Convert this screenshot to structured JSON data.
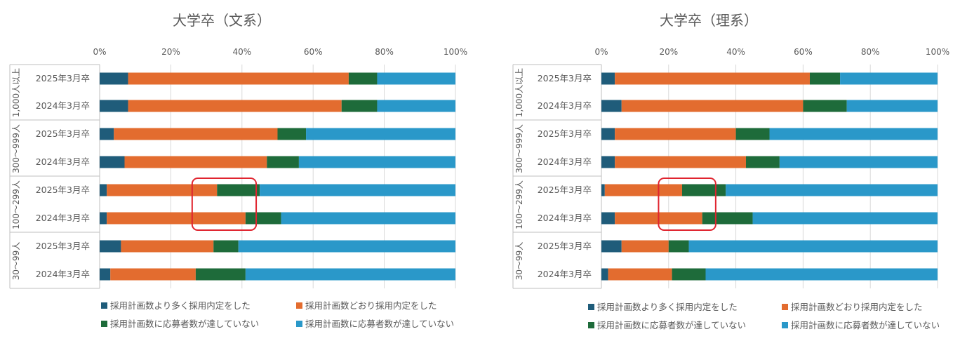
{
  "colors": {
    "more": "#1F5C7A",
    "asPlanned": "#E36C2F",
    "dark_green": "#1E6B3A",
    "blue": "#2A98C9",
    "axis": "#bfbfbf",
    "text": "#595959",
    "highlight": "#E0242F"
  },
  "chart_data": [
    {
      "type": "bar",
      "orientation": "horizontal",
      "stacked": "percent",
      "title": "大学卒（文系）",
      "xlim": [
        0,
        100
      ],
      "x_ticks": [
        "0%",
        "20%",
        "40%",
        "60%",
        "80%",
        "100%"
      ],
      "groups": [
        {
          "label": "1,000人以上",
          "categories": [
            "2025年3月卒",
            "2024年3月卒"
          ]
        },
        {
          "label": "300～999人",
          "categories": [
            "2025年3月卒",
            "2024年3月卒"
          ]
        },
        {
          "label": "100～299人",
          "categories": [
            "2025年3月卒",
            "2024年3月卒"
          ]
        },
        {
          "label": "30～99人",
          "categories": [
            "2025年3月卒",
            "2024年3月卒"
          ]
        }
      ],
      "series": [
        {
          "name": "採用計画数より多く採用内定をした",
          "color_key": "more",
          "values": [
            8,
            8,
            4,
            7,
            2,
            2,
            6,
            3
          ]
        },
        {
          "name": "採用計画数どおり採用内定をした",
          "color_key": "asPlanned",
          "values": [
            62,
            60,
            46,
            40,
            31,
            39,
            26,
            24
          ]
        },
        {
          "name": "採用計画数に応募者数が達していない",
          "color_key": "dark_green",
          "values": [
            8,
            10,
            8,
            9,
            12,
            10,
            7,
            14
          ]
        },
        {
          "name": "採用計画数に応募者数が達していない",
          "color_key": "blue",
          "values": [
            22,
            22,
            42,
            44,
            55,
            49,
            61,
            59
          ]
        }
      ],
      "highlight_box": {
        "rows": [
          4,
          5
        ],
        "range": [
          26,
          44
        ]
      },
      "legend_position": "bottom"
    },
    {
      "type": "bar",
      "orientation": "horizontal",
      "stacked": "percent",
      "title": "大学卒（理系）",
      "xlim": [
        0,
        100
      ],
      "x_ticks": [
        "0%",
        "20%",
        "40%",
        "60%",
        "80%",
        "100%"
      ],
      "groups": [
        {
          "label": "1,000人以上",
          "categories": [
            "2025年3月卒",
            "2024年3月卒"
          ]
        },
        {
          "label": "300～999人",
          "categories": [
            "2025年3月卒",
            "2024年3月卒"
          ]
        },
        {
          "label": "100～299人",
          "categories": [
            "2025年3月卒",
            "2024年3月卒"
          ]
        },
        {
          "label": "30～99人",
          "categories": [
            "2025年3月卒",
            "2024年3月卒"
          ]
        }
      ],
      "series": [
        {
          "name": "採用計画数より多く採用内定をした",
          "color_key": "more",
          "values": [
            4,
            6,
            4,
            4,
            1,
            4,
            6,
            2
          ]
        },
        {
          "name": "採用計画数どおり採用内定をした",
          "color_key": "asPlanned",
          "values": [
            58,
            54,
            36,
            39,
            23,
            26,
            14,
            19
          ]
        },
        {
          "name": "採用計画数に応募者数が達していない",
          "color_key": "dark_green",
          "values": [
            9,
            13,
            10,
            10,
            13,
            15,
            6,
            10
          ]
        },
        {
          "name": "採用計画数に応募者数が達していない",
          "color_key": "blue",
          "values": [
            29,
            27,
            50,
            47,
            63,
            55,
            74,
            69
          ]
        }
      ],
      "highlight_box": {
        "rows": [
          4,
          5
        ],
        "range": [
          17,
          34
        ]
      },
      "legend_position": "bottom"
    }
  ]
}
